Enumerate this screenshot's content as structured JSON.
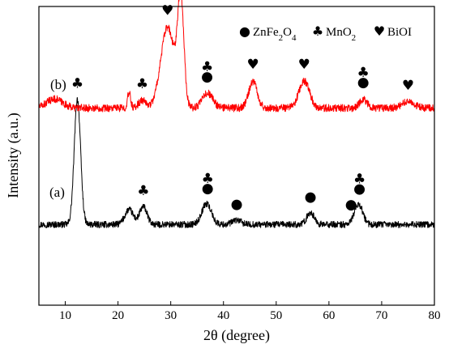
{
  "chart_data": {
    "type": "line",
    "xlabel_main": "2θ",
    "xlabel_unit": "(degree)",
    "ylabel": "Intensity (a.u.)",
    "xlim": [
      5,
      80
    ],
    "x_ticks": [
      10,
      20,
      30,
      40,
      50,
      60,
      70,
      80
    ],
    "y_ticks_shown": false,
    "grid": false,
    "legend_position": "top-right",
    "legend": [
      {
        "symbol": "circle",
        "label_base": "ZnFe",
        "sub1": "2",
        "label_mid": "O",
        "sub2": "4"
      },
      {
        "symbol": "club",
        "label_base": "MnO",
        "sub1": "2"
      },
      {
        "symbol": "heart",
        "label_base": "BiOI"
      }
    ],
    "series": [
      {
        "label": "(a)",
        "color": "#000000",
        "baseline": 0.27,
        "noise": 0.022,
        "peaks": [
          {
            "x": 12.3,
            "h": 0.42,
            "w": 0.6
          },
          {
            "x": 22.1,
            "h": 0.05,
            "w": 0.8
          },
          {
            "x": 24.8,
            "h": 0.06,
            "w": 0.7
          },
          {
            "x": 36.8,
            "h": 0.07,
            "w": 0.9
          },
          {
            "x": 42.5,
            "h": 0.015,
            "w": 0.8
          },
          {
            "x": 56.5,
            "h": 0.04,
            "w": 0.7
          },
          {
            "x": 64.9,
            "h": 0.02,
            "w": 0.6
          },
          {
            "x": 65.8,
            "h": 0.06,
            "w": 0.7
          }
        ],
        "markers": [
          {
            "x": 12.3,
            "stack": [
              "club"
            ]
          },
          {
            "x": 24.8,
            "stack": [
              "club"
            ]
          },
          {
            "x": 37.0,
            "stack": [
              "club",
              "circle"
            ]
          },
          {
            "x": 42.5,
            "stack": [
              "circle"
            ]
          },
          {
            "x": 56.5,
            "stack": [
              "circle"
            ]
          },
          {
            "x": 64.2,
            "stack": [
              "circle"
            ]
          },
          {
            "x": 65.8,
            "stack": [
              "club",
              "circle"
            ]
          }
        ]
      },
      {
        "label": "(b)",
        "color": "#ff0000",
        "baseline": 0.66,
        "noise": 0.025,
        "peaks": [
          {
            "x": 8.0,
            "h": 0.03,
            "w": 1.5
          },
          {
            "x": 22.1,
            "h": 0.05,
            "w": 0.3
          },
          {
            "x": 24.6,
            "h": 0.025,
            "w": 0.7
          },
          {
            "x": 29.4,
            "h": 0.27,
            "w": 1.3
          },
          {
            "x": 31.9,
            "h": 0.35,
            "w": 0.6
          },
          {
            "x": 37.0,
            "h": 0.05,
            "w": 1.0
          },
          {
            "x": 45.6,
            "h": 0.09,
            "w": 0.8
          },
          {
            "x": 55.3,
            "h": 0.09,
            "w": 1.0
          },
          {
            "x": 66.5,
            "h": 0.03,
            "w": 0.7
          },
          {
            "x": 75.0,
            "h": 0.02,
            "w": 1.2
          }
        ],
        "markers": [
          {
            "x": 24.6,
            "stack": [
              "club"
            ]
          },
          {
            "x": 29.4,
            "stack": [
              "heart"
            ]
          },
          {
            "x": 31.9,
            "stack": [
              "heart"
            ]
          },
          {
            "x": 36.9,
            "stack": [
              "club",
              "circle"
            ]
          },
          {
            "x": 45.6,
            "stack": [
              "heart"
            ]
          },
          {
            "x": 55.3,
            "stack": [
              "heart"
            ]
          },
          {
            "x": 66.5,
            "stack": [
              "club",
              "circle"
            ]
          },
          {
            "x": 75.0,
            "stack": [
              "heart"
            ]
          }
        ]
      }
    ]
  }
}
